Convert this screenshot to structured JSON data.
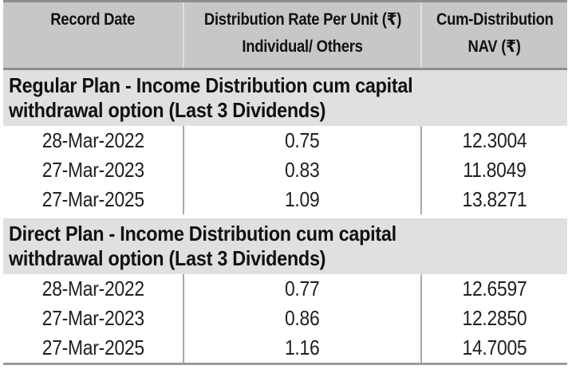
{
  "colors": {
    "header_bg": "#c7c7c7",
    "section_band_bg": "#e0e0e0",
    "top_border": "#8e8e8e",
    "header_divider": "#8e8e8e",
    "header_column_separator": "#dfdfdf",
    "body_column_separator": "#a9a9a9",
    "bottom_border": "#9b9b9b",
    "text": "#111111"
  },
  "currency_symbol": "₹",
  "header": {
    "record_date": "Record Date",
    "rate_line1": "Distribution Rate Per Unit (₹)",
    "rate_line2": "Individual/ Others",
    "nav_line1": "Cum-Distribution",
    "nav_line2": "NAV (₹)"
  },
  "sections": [
    {
      "title_line1": "Regular Plan - Income Distribution cum capital",
      "title_line2": "withdrawal option (Last 3 Dividends)",
      "rows": [
        {
          "date": "28-Mar-2022",
          "rate": "0.75",
          "nav": "12.3004"
        },
        {
          "date": "27-Mar-2023",
          "rate": "0.83",
          "nav": "11.8049"
        },
        {
          "date": "27-Mar-2025",
          "rate": "1.09",
          "nav": "13.8271"
        }
      ]
    },
    {
      "title_line1": "Direct Plan - Income Distribution cum capital",
      "title_line2": "withdrawal option (Last 3 Dividends)",
      "rows": [
        {
          "date": "28-Mar-2022",
          "rate": "0.77",
          "nav": "12.6597"
        },
        {
          "date": "27-Mar-2023",
          "rate": "0.86",
          "nav": "12.2850"
        },
        {
          "date": "27-Mar-2025",
          "rate": "1.16",
          "nav": "14.7005"
        }
      ]
    }
  ]
}
